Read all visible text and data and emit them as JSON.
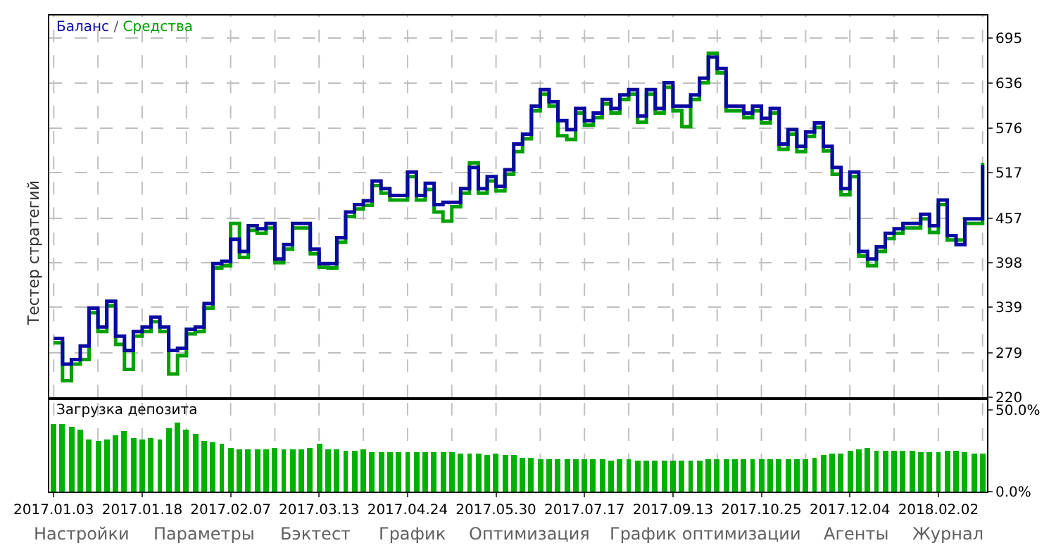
{
  "chart_data": [
    {
      "type": "step",
      "annotations": [
        "/"
      ],
      "grid": true,
      "line_style": "solid",
      "tick_labels": "y",
      "categories": [
        "2017.01.03",
        null,
        null,
        null,
        null,
        null,
        null,
        null,
        null,
        null,
        "2017.01.18",
        null,
        null,
        null,
        null,
        null,
        null,
        null,
        null,
        null,
        "2017.02.07",
        null,
        null,
        null,
        null,
        null,
        null,
        null,
        null,
        null,
        "2017.03.13",
        null,
        null,
        null,
        null,
        null,
        null,
        null,
        null,
        null,
        "2017.04.24",
        null,
        null,
        null,
        null,
        null,
        null,
        null,
        null,
        null,
        "2017.05.30",
        null,
        null,
        null,
        null,
        null,
        null,
        null,
        null,
        null,
        "2017.07.17",
        null,
        null,
        null,
        null,
        null,
        null,
        null,
        null,
        null,
        "2017.09.13",
        null,
        null,
        null,
        null,
        null,
        null,
        null,
        null,
        null,
        "2017.10.25",
        null,
        null,
        null,
        null,
        null,
        null,
        null,
        null,
        null,
        "2017.12.04",
        null,
        null,
        null,
        null,
        null,
        null,
        null,
        null,
        null,
        "2018.02.02",
        null,
        null,
        null,
        null,
        null
      ],
      "ylim": [
        220,
        725
      ],
      "yticks": [
        220,
        279,
        339,
        398,
        457,
        517,
        576,
        636,
        695
      ],
      "series": [
        {
          "name": "Средства",
          "color": "#00a000",
          "values": [
            292,
            242,
            264,
            270,
            332,
            307,
            341,
            290,
            257,
            301,
            307,
            320,
            307,
            251,
            275,
            304,
            307,
            338,
            391,
            394,
            450,
            405,
            441,
            437,
            444,
            398,
            416,
            444,
            444,
            410,
            392,
            391,
            425,
            459,
            469,
            474,
            500,
            490,
            481,
            481,
            512,
            481,
            495,
            465,
            453,
            472,
            490,
            530,
            490,
            506,
            493,
            515,
            545,
            562,
            599,
            621,
            605,
            566,
            561,
            596,
            580,
            590,
            608,
            596,
            614,
            621,
            584,
            621,
            596,
            630,
            599,
            578,
            614,
            636,
            675,
            649,
            599,
            599,
            590,
            599,
            583,
            596,
            548,
            568,
            545,
            565,
            577,
            546,
            515,
            488,
            512,
            407,
            394,
            413,
            430,
            437,
            444,
            444,
            456,
            438,
            475,
            428,
            428,
            450,
            450,
            530
          ]
        },
        {
          "name": "Баланс",
          "color": "#0a0aa0",
          "values": [
            298,
            264,
            270,
            288,
            338,
            313,
            347,
            301,
            282,
            307,
            313,
            326,
            313,
            282,
            285,
            310,
            313,
            344,
            397,
            400,
            429,
            413,
            447,
            443,
            450,
            403,
            422,
            450,
            450,
            416,
            397,
            397,
            431,
            465,
            475,
            480,
            506,
            496,
            487,
            487,
            518,
            487,
            503,
            475,
            478,
            478,
            496,
            524,
            496,
            512,
            499,
            521,
            555,
            568,
            605,
            627,
            611,
            586,
            574,
            602,
            586,
            596,
            614,
            602,
            620,
            627,
            592,
            627,
            602,
            636,
            605,
            605,
            620,
            642,
            670,
            655,
            605,
            605,
            596,
            605,
            589,
            602,
            555,
            574,
            552,
            571,
            583,
            552,
            524,
            496,
            518,
            413,
            403,
            419,
            437,
            443,
            450,
            450,
            462,
            447,
            481,
            434,
            422,
            456,
            456,
            527
          ]
        }
      ]
    },
    {
      "type": "bar",
      "title": "Загрузка депозита",
      "grid": "x",
      "color": "#00b000",
      "categories": [
        "2017.01.03",
        null,
        null,
        null,
        null,
        null,
        null,
        null,
        null,
        null,
        "2017.01.18",
        null,
        null,
        null,
        null,
        null,
        null,
        null,
        null,
        null,
        "2017.02.07",
        null,
        null,
        null,
        null,
        null,
        null,
        null,
        null,
        null,
        "2017.03.13",
        null,
        null,
        null,
        null,
        null,
        null,
        null,
        null,
        null,
        "2017.04.24",
        null,
        null,
        null,
        null,
        null,
        null,
        null,
        null,
        null,
        "2017.05.30",
        null,
        null,
        null,
        null,
        null,
        null,
        null,
        null,
        null,
        "2017.07.17",
        null,
        null,
        null,
        null,
        null,
        null,
        null,
        null,
        null,
        "2017.09.13",
        null,
        null,
        null,
        null,
        null,
        null,
        null,
        null,
        null,
        "2017.10.25",
        null,
        null,
        null,
        null,
        null,
        null,
        null,
        null,
        null,
        "2017.12.04",
        null,
        null,
        null,
        null,
        null,
        null,
        null,
        null,
        null,
        "2018.02.02",
        null,
        null,
        null,
        null,
        null
      ],
      "ylim": [
        0,
        56
      ],
      "yticks": [
        {
          "value": 0,
          "label": "0.0%"
        },
        {
          "value": 50,
          "label": "50.0%"
        }
      ],
      "values": [
        41,
        41,
        40,
        38,
        32,
        31,
        32,
        34,
        37,
        33,
        32,
        33,
        32,
        39,
        42,
        38,
        35,
        31,
        30,
        29,
        27,
        26,
        26,
        26,
        26,
        27,
        26,
        26,
        26,
        27,
        29,
        26,
        26,
        25,
        25,
        26,
        24,
        24,
        24,
        24,
        24,
        24,
        24,
        24,
        24,
        24,
        23,
        23,
        23,
        22,
        23,
        22,
        22,
        21,
        21,
        20,
        20,
        20,
        20,
        20,
        20,
        20,
        20,
        19,
        20,
        20,
        19,
        19,
        19,
        19,
        19,
        19,
        19,
        19,
        20,
        20,
        20,
        20,
        20,
        20,
        20,
        20,
        20,
        20,
        20,
        20,
        21,
        22,
        23,
        23,
        25,
        26,
        27,
        25,
        25,
        25,
        25,
        25,
        24,
        24,
        24,
        25,
        25,
        24,
        23,
        23
      ]
    },
    {
      "type": "other",
      "title": "Тестер стратегий",
      "categories": [
        "Настройки",
        "Параметры",
        "Бэктест",
        "График",
        "Оптимизация",
        "График оптимизации",
        "Агенты",
        "Журнал"
      ]
    }
  ]
}
